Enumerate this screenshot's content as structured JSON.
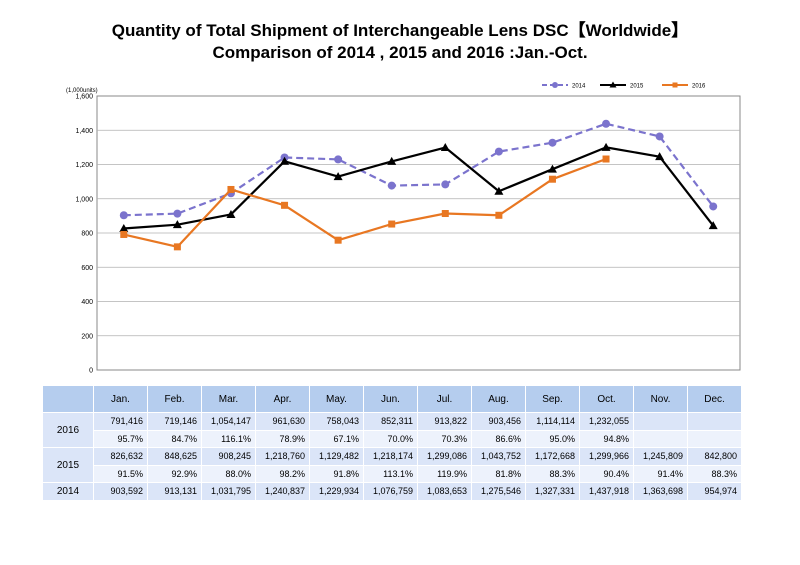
{
  "title_lines": [
    "Quantity of Total Shipment of Interchangeable Lens DSC【Worldwide】",
    "Comparison of 2014 , 2015 and 2016 :Jan.-Oct."
  ],
  "chart_data": {
    "type": "line",
    "title": "Quantity of Total Shipment of Interchangeable Lens DSC【Worldwide】 Comparison of 2014 , 2015 and 2016 :Jan.-Oct.",
    "unit_label": "(1,000units)",
    "ylim": [
      0,
      1600
    ],
    "y_ticks": [
      "0",
      "200",
      "400",
      "600",
      "800",
      "1,000",
      "1,200",
      "1,400",
      "1,600"
    ],
    "y_tick_values": [
      0,
      200,
      400,
      600,
      800,
      1000,
      1200,
      1400,
      1600
    ],
    "grid": true,
    "legend_position": "top-right",
    "categories": [
      "Jan.",
      "Feb.",
      "Mar.",
      "Apr.",
      "May.",
      "Jun.",
      "Jul.",
      "Aug.",
      "Sep.",
      "Oct.",
      "Nov.",
      "Dec."
    ],
    "series": [
      {
        "name": "2014",
        "color": "#7b73cd",
        "marker": "circle",
        "dashed": true,
        "values": [
          903.592,
          913.131,
          1031.795,
          1240.837,
          1229.934,
          1076.759,
          1083.653,
          1275.546,
          1327.331,
          1437.918,
          1363.698,
          954.974
        ]
      },
      {
        "name": "2015",
        "color": "#000000",
        "marker": "triangle",
        "dashed": false,
        "values": [
          826.632,
          848.625,
          908.245,
          1218.76,
          1129.482,
          1218.174,
          1299.086,
          1043.752,
          1172.668,
          1299.966,
          1245.809,
          842.8
        ]
      },
      {
        "name": "2016",
        "color": "#e87722",
        "marker": "square",
        "dashed": false,
        "values": [
          791.416,
          719.146,
          1054.147,
          961.63,
          758.043,
          852.311,
          913.822,
          903.456,
          1114.114,
          1232.055,
          null,
          null
        ]
      }
    ]
  },
  "table": {
    "months": [
      "Jan.",
      "Feb.",
      "Mar.",
      "Apr.",
      "May.",
      "Jun.",
      "Jul.",
      "Aug.",
      "Sep.",
      "Oct.",
      "Nov.",
      "Dec."
    ],
    "rows": [
      {
        "year": "2016",
        "values": [
          "791,416",
          "719,146",
          "1,054,147",
          "961,630",
          "758,043",
          "852,311",
          "913,822",
          "903,456",
          "1,114,114",
          "1,232,055",
          "",
          ""
        ],
        "percents": [
          "95.7%",
          "84.7%",
          "116.1%",
          "78.9%",
          "67.1%",
          "70.0%",
          "70.3%",
          "86.6%",
          "95.0%",
          "94.8%",
          "",
          ""
        ]
      },
      {
        "year": "2015",
        "values": [
          "826,632",
          "848,625",
          "908,245",
          "1,218,760",
          "1,129,482",
          "1,218,174",
          "1,299,086",
          "1,043,752",
          "1,172,668",
          "1,299,966",
          "1,245,809",
          "842,800"
        ],
        "percents": [
          "91.5%",
          "92.9%",
          "88.0%",
          "98.2%",
          "91.8%",
          "113.1%",
          "119.9%",
          "81.8%",
          "88.3%",
          "90.4%",
          "91.4%",
          "88.3%"
        ]
      },
      {
        "year": "2014",
        "values": [
          "903,592",
          "913,131",
          "1,031,795",
          "1,240,837",
          "1,229,934",
          "1,076,759",
          "1,083,653",
          "1,275,546",
          "1,327,331",
          "1,437,918",
          "1,363,698",
          "954,974"
        ],
        "percents": []
      }
    ]
  }
}
